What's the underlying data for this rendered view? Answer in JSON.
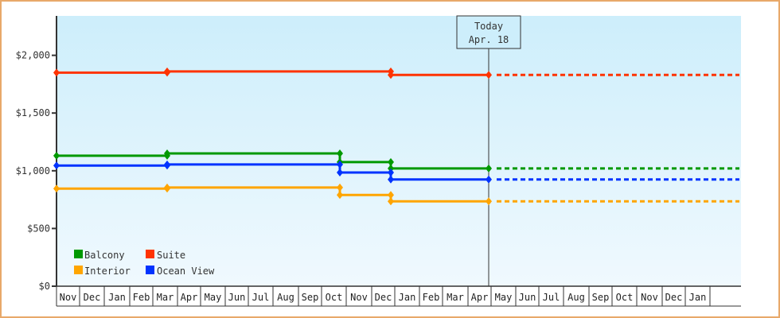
{
  "chart_data": {
    "type": "line",
    "title": "",
    "xlabel": "",
    "ylabel": "",
    "ylim": [
      0,
      2350
    ],
    "y_ticks": [
      {
        "value": 0,
        "label": "$0"
      },
      {
        "value": 500,
        "label": "$500"
      },
      {
        "value": 1000,
        "label": "$1,000"
      },
      {
        "value": 1500,
        "label": "$1,500"
      },
      {
        "value": 2000,
        "label": "$2,000"
      }
    ],
    "x_months": [
      "Nov",
      "Dec",
      "Jan",
      "Feb",
      "Mar",
      "Apr",
      "May",
      "Jun",
      "Jul",
      "Aug",
      "Sep",
      "Oct",
      "Nov",
      "Dec",
      "Jan",
      "Feb",
      "Mar",
      "Apr",
      "May",
      "Jun",
      "Jul",
      "Aug",
      "Sep",
      "Oct",
      "Nov",
      "Dec",
      "Jan"
    ],
    "grid": false,
    "legend_position": "bottom-left inside",
    "today_marker": {
      "line1": "Today",
      "line2": "Apr. 18",
      "month_index": 17.6
    },
    "series": [
      {
        "name": "Balcony",
        "color": "#009900",
        "points": [
          {
            "x": 0,
            "y": 1130
          },
          {
            "x": 4.5,
            "y": 1130
          },
          {
            "x": 4.5,
            "y": 1150
          },
          {
            "x": 11.6,
            "y": 1150
          },
          {
            "x": 11.6,
            "y": 1075
          },
          {
            "x": 13.6,
            "y": 1075
          },
          {
            "x": 13.6,
            "y": 1020
          },
          {
            "x": 17.6,
            "y": 1020
          }
        ],
        "forecast": 1020
      },
      {
        "name": "Suite",
        "color": "#ff3300",
        "points": [
          {
            "x": 0,
            "y": 1850
          },
          {
            "x": 4.5,
            "y": 1850
          },
          {
            "x": 4.5,
            "y": 1860
          },
          {
            "x": 13.6,
            "y": 1860
          },
          {
            "x": 13.6,
            "y": 1830
          },
          {
            "x": 17.6,
            "y": 1830
          }
        ],
        "forecast": 1830
      },
      {
        "name": "Interior",
        "color": "#ffa500",
        "points": [
          {
            "x": 0,
            "y": 845
          },
          {
            "x": 4.5,
            "y": 845
          },
          {
            "x": 4.5,
            "y": 855
          },
          {
            "x": 11.6,
            "y": 855
          },
          {
            "x": 11.6,
            "y": 790
          },
          {
            "x": 13.6,
            "y": 790
          },
          {
            "x": 13.6,
            "y": 735
          },
          {
            "x": 17.6,
            "y": 735
          }
        ],
        "forecast": 735
      },
      {
        "name": "Ocean View",
        "color": "#0033ff",
        "points": [
          {
            "x": 0,
            "y": 1045
          },
          {
            "x": 4.5,
            "y": 1045
          },
          {
            "x": 4.5,
            "y": 1055
          },
          {
            "x": 11.6,
            "y": 1055
          },
          {
            "x": 11.6,
            "y": 985
          },
          {
            "x": 13.6,
            "y": 985
          },
          {
            "x": 13.6,
            "y": 925
          },
          {
            "x": 17.6,
            "y": 925
          }
        ],
        "forecast": 925
      }
    ]
  },
  "legend": {
    "items": [
      {
        "label": "Balcony",
        "color": "#009900"
      },
      {
        "label": "Suite",
        "color": "#ff3300"
      },
      {
        "label": "Interior",
        "color": "#ffa500"
      },
      {
        "label": "Ocean View",
        "color": "#0033ff"
      }
    ]
  },
  "today": {
    "line1": "Today",
    "line2": "Apr. 18"
  },
  "colors": {
    "frame": "#e8a96a",
    "axis": "#333333",
    "plot_top": "#cdeefb",
    "plot_bottom": "#f0f9fe"
  }
}
